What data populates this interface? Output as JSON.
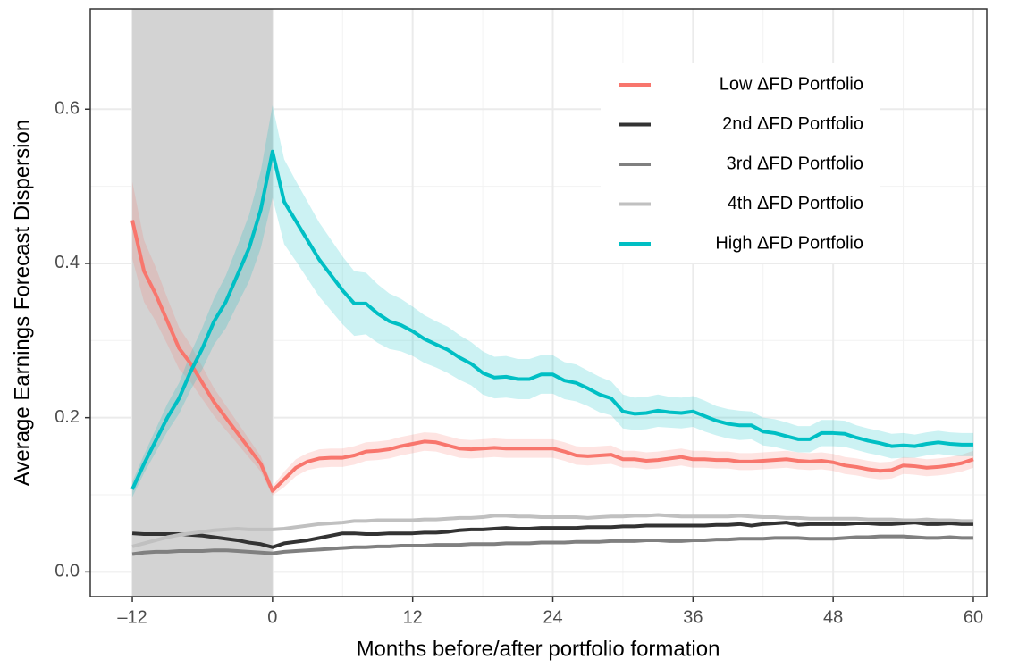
{
  "chart_data": {
    "type": "line",
    "xlabel": "Months before/after portfolio formation",
    "ylabel": "Average Earnings Forecast Dispersion",
    "x": [
      -12,
      -11,
      -10,
      -9,
      -8,
      -7,
      -6,
      -5,
      -4,
      -3,
      -2,
      -1,
      0,
      1,
      2,
      3,
      4,
      5,
      6,
      7,
      8,
      9,
      10,
      11,
      12,
      13,
      14,
      15,
      16,
      17,
      18,
      19,
      20,
      21,
      22,
      23,
      24,
      25,
      26,
      27,
      28,
      29,
      30,
      31,
      32,
      33,
      34,
      35,
      36,
      37,
      38,
      39,
      40,
      41,
      42,
      43,
      44,
      45,
      46,
      47,
      48,
      49,
      50,
      51,
      52,
      53,
      54,
      55,
      56,
      57,
      58,
      59,
      60
    ],
    "shade": [
      -12,
      0
    ],
    "series": [
      {
        "name": "Low ΔFD Portfolio",
        "color": "#f8766d",
        "values": [
          0.456,
          0.39,
          0.36,
          0.325,
          0.29,
          0.27,
          0.245,
          0.22,
          0.2,
          0.18,
          0.16,
          0.14,
          0.105,
          0.12,
          0.135,
          0.143,
          0.147,
          0.148,
          0.148,
          0.151,
          0.156,
          0.157,
          0.159,
          0.163,
          0.166,
          0.169,
          0.168,
          0.164,
          0.16,
          0.159,
          0.16,
          0.161,
          0.16,
          0.16,
          0.16,
          0.16,
          0.16,
          0.156,
          0.151,
          0.15,
          0.151,
          0.152,
          0.146,
          0.146,
          0.144,
          0.145,
          0.147,
          0.149,
          0.146,
          0.146,
          0.145,
          0.145,
          0.143,
          0.143,
          0.144,
          0.145,
          0.146,
          0.144,
          0.143,
          0.144,
          0.142,
          0.138,
          0.136,
          0.133,
          0.131,
          0.132,
          0.138,
          0.137,
          0.135,
          0.136,
          0.138,
          0.141,
          0.146
        ],
        "errors": [
          0.05,
          0.04,
          0.035,
          0.03,
          0.027,
          0.024,
          0.021,
          0.018,
          0.016,
          0.014,
          0.012,
          0.01,
          0.006,
          0.01,
          0.011,
          0.011,
          0.012,
          0.012,
          0.012,
          0.012,
          0.012,
          0.012,
          0.012,
          0.012,
          0.012,
          0.012,
          0.012,
          0.012,
          0.012,
          0.012,
          0.012,
          0.012,
          0.012,
          0.012,
          0.012,
          0.012,
          0.012,
          0.012,
          0.012,
          0.012,
          0.012,
          0.012,
          0.011,
          0.011,
          0.011,
          0.011,
          0.011,
          0.011,
          0.011,
          0.011,
          0.011,
          0.011,
          0.011,
          0.011,
          0.011,
          0.011,
          0.011,
          0.011,
          0.011,
          0.011,
          0.011,
          0.011,
          0.011,
          0.011,
          0.011,
          0.011,
          0.011,
          0.011,
          0.011,
          0.011,
          0.011,
          0.011,
          0.011
        ]
      },
      {
        "name": "2nd ΔFD Portfolio",
        "color": "#333333",
        "values": [
          0.05,
          0.049,
          0.049,
          0.049,
          0.049,
          0.048,
          0.047,
          0.045,
          0.043,
          0.041,
          0.038,
          0.036,
          0.032,
          0.037,
          0.039,
          0.041,
          0.044,
          0.047,
          0.05,
          0.05,
          0.049,
          0.049,
          0.05,
          0.05,
          0.05,
          0.051,
          0.051,
          0.052,
          0.054,
          0.055,
          0.055,
          0.056,
          0.057,
          0.056,
          0.056,
          0.057,
          0.057,
          0.057,
          0.057,
          0.058,
          0.058,
          0.058,
          0.059,
          0.059,
          0.06,
          0.06,
          0.06,
          0.06,
          0.06,
          0.06,
          0.061,
          0.061,
          0.062,
          0.06,
          0.062,
          0.063,
          0.064,
          0.061,
          0.062,
          0.062,
          0.062,
          0.062,
          0.063,
          0.063,
          0.062,
          0.062,
          0.063,
          0.064,
          0.062,
          0.062,
          0.063,
          0.062,
          0.062
        ]
      },
      {
        "name": "3rd ΔFD Portfolio",
        "color": "#808080",
        "values": [
          0.023,
          0.025,
          0.026,
          0.026,
          0.027,
          0.027,
          0.027,
          0.028,
          0.028,
          0.027,
          0.026,
          0.025,
          0.024,
          0.026,
          0.027,
          0.028,
          0.029,
          0.03,
          0.031,
          0.032,
          0.032,
          0.033,
          0.033,
          0.034,
          0.034,
          0.034,
          0.035,
          0.035,
          0.035,
          0.036,
          0.036,
          0.036,
          0.037,
          0.037,
          0.037,
          0.038,
          0.038,
          0.038,
          0.039,
          0.039,
          0.039,
          0.04,
          0.04,
          0.04,
          0.041,
          0.041,
          0.04,
          0.04,
          0.041,
          0.041,
          0.042,
          0.042,
          0.043,
          0.043,
          0.043,
          0.044,
          0.044,
          0.044,
          0.043,
          0.043,
          0.043,
          0.044,
          0.045,
          0.045,
          0.046,
          0.046,
          0.046,
          0.045,
          0.044,
          0.044,
          0.045,
          0.044,
          0.044
        ]
      },
      {
        "name": "4th ΔFD Portfolio",
        "color": "#c0c0c0",
        "values": [
          0.033,
          0.037,
          0.041,
          0.045,
          0.048,
          0.05,
          0.052,
          0.054,
          0.055,
          0.056,
          0.055,
          0.055,
          0.055,
          0.056,
          0.058,
          0.06,
          0.062,
          0.063,
          0.064,
          0.066,
          0.066,
          0.067,
          0.067,
          0.067,
          0.067,
          0.068,
          0.068,
          0.069,
          0.07,
          0.07,
          0.071,
          0.073,
          0.073,
          0.072,
          0.072,
          0.071,
          0.071,
          0.071,
          0.071,
          0.07,
          0.071,
          0.072,
          0.072,
          0.073,
          0.073,
          0.074,
          0.073,
          0.072,
          0.072,
          0.072,
          0.072,
          0.072,
          0.073,
          0.072,
          0.071,
          0.071,
          0.07,
          0.07,
          0.069,
          0.069,
          0.069,
          0.069,
          0.069,
          0.068,
          0.068,
          0.068,
          0.067,
          0.067,
          0.068,
          0.067,
          0.067,
          0.066,
          0.066
        ]
      },
      {
        "name": "High ΔFD Portfolio",
        "color": "#00bfc4",
        "values": [
          0.107,
          0.14,
          0.17,
          0.2,
          0.225,
          0.26,
          0.29,
          0.325,
          0.35,
          0.385,
          0.42,
          0.47,
          0.545,
          0.48,
          0.455,
          0.43,
          0.405,
          0.385,
          0.365,
          0.348,
          0.348,
          0.335,
          0.325,
          0.32,
          0.312,
          0.302,
          0.295,
          0.288,
          0.278,
          0.27,
          0.258,
          0.252,
          0.253,
          0.25,
          0.25,
          0.256,
          0.256,
          0.248,
          0.245,
          0.238,
          0.23,
          0.225,
          0.208,
          0.205,
          0.206,
          0.209,
          0.207,
          0.206,
          0.208,
          0.202,
          0.196,
          0.192,
          0.19,
          0.19,
          0.182,
          0.18,
          0.176,
          0.172,
          0.172,
          0.18,
          0.18,
          0.179,
          0.174,
          0.17,
          0.167,
          0.163,
          0.164,
          0.163,
          0.166,
          0.168,
          0.166,
          0.165,
          0.165
        ],
        "errors": [
          0.01,
          0.012,
          0.015,
          0.018,
          0.02,
          0.024,
          0.027,
          0.03,
          0.034,
          0.038,
          0.043,
          0.05,
          0.06,
          0.055,
          0.052,
          0.05,
          0.048,
          0.046,
          0.044,
          0.042,
          0.04,
          0.038,
          0.036,
          0.034,
          0.032,
          0.031,
          0.03,
          0.03,
          0.029,
          0.028,
          0.028,
          0.027,
          0.027,
          0.026,
          0.026,
          0.025,
          0.025,
          0.024,
          0.024,
          0.023,
          0.023,
          0.022,
          0.022,
          0.021,
          0.021,
          0.021,
          0.02,
          0.02,
          0.02,
          0.02,
          0.019,
          0.019,
          0.019,
          0.018,
          0.018,
          0.018,
          0.018,
          0.017,
          0.017,
          0.017,
          0.017,
          0.017,
          0.016,
          0.016,
          0.016,
          0.016,
          0.016,
          0.015,
          0.015,
          0.015,
          0.015,
          0.015,
          0.015
        ]
      }
    ],
    "xlim": [
      -15.6,
      61.15
    ],
    "ylim": [
      -0.032,
      0.73
    ],
    "xticks": [
      {
        "value": -12,
        "label": "–12"
      },
      0,
      12,
      24,
      36,
      48,
      60
    ],
    "yticks": [
      {
        "value": 0,
        "label": "0.0"
      },
      0.2,
      0.4,
      0.6
    ],
    "grid": true,
    "legend": "top-right"
  }
}
